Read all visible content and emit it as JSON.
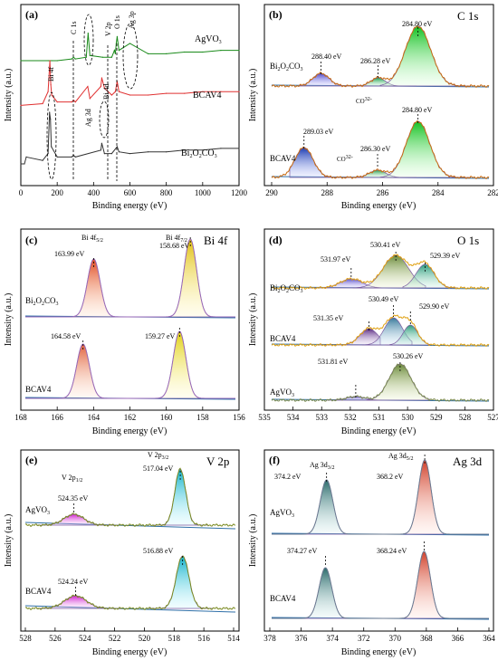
{
  "chart_data": [
    {
      "type": "line",
      "panel": "(a)",
      "xlabel": "Binding energy (eV)",
      "ylabel": "Intensity (a.u.)",
      "xlim": [
        0,
        1200
      ],
      "xticks": [
        "0",
        "200",
        "400",
        "600",
        "800",
        "1000",
        "1200"
      ],
      "series": [
        {
          "name": "AgVO3",
          "color": "#1a8a1a",
          "x": [
            0,
            150,
            160,
            170,
            200,
            280,
            290,
            300,
            360,
            370,
            380,
            450,
            500,
            515,
            520,
            525,
            530,
            540,
            600,
            700,
            800,
            900,
            1000,
            1100,
            1200
          ],
          "y": [
            0.7,
            0.7,
            0.7,
            0.7,
            0.7,
            0.71,
            0.72,
            0.71,
            0.72,
            0.86,
            0.73,
            0.72,
            0.72,
            0.76,
            0.74,
            0.8,
            0.84,
            0.76,
            0.8,
            0.74,
            0.74,
            0.75,
            0.75,
            0.76,
            0.76
          ]
        },
        {
          "name": "BCAV4",
          "color": "#e03030",
          "x": [
            0,
            120,
            150,
            160,
            165,
            170,
            200,
            280,
            290,
            300,
            368,
            380,
            440,
            445,
            460,
            500,
            520,
            530,
            540,
            600,
            700,
            800,
            900,
            1000,
            1100,
            1200
          ],
          "y": [
            0.44,
            0.45,
            0.52,
            0.7,
            0.56,
            0.5,
            0.46,
            0.46,
            0.47,
            0.46,
            0.55,
            0.48,
            0.55,
            0.6,
            0.54,
            0.5,
            0.52,
            0.58,
            0.52,
            0.5,
            0.5,
            0.51,
            0.51,
            0.52,
            0.52,
            0.52
          ]
        },
        {
          "name": "Bi2O2CO3",
          "color": "#333333",
          "x": [
            0,
            20,
            30,
            120,
            150,
            158,
            163,
            168,
            200,
            280,
            290,
            300,
            440,
            445,
            460,
            500,
            530,
            540,
            600,
            700,
            800,
            900,
            1000,
            1100,
            1200
          ],
          "y": [
            0.1,
            0.1,
            0.14,
            0.12,
            0.16,
            0.4,
            0.36,
            0.2,
            0.14,
            0.14,
            0.15,
            0.14,
            0.18,
            0.22,
            0.16,
            0.16,
            0.2,
            0.17,
            0.16,
            0.17,
            0.17,
            0.18,
            0.18,
            0.19,
            0.19
          ]
        }
      ],
      "labels": [
        "AgVO3",
        "BCAV4",
        "Bi2O2CO3"
      ],
      "annotations": [
        "Bi 4f",
        "C 1s",
        "Ag 3d",
        "Bi 4d",
        "V 2p",
        "O 1s",
        "Ag 3p"
      ]
    },
    {
      "type": "line",
      "panel": "(b)",
      "title": "C 1s",
      "xlabel": "Binding energy (eV)",
      "ylabel": "Intensity (a.u.)",
      "xlim": [
        290.5,
        282
      ],
      "xticks": [
        "290",
        "288",
        "286",
        "284",
        "282"
      ],
      "samples": [
        {
          "name": "Bi2O2CO3",
          "peaks": [
            {
              "center": 284.8,
              "label": "284.80 eV"
            },
            {
              "center": 288.4,
              "label": "288.40 eV"
            },
            {
              "center": 286.28,
              "label": "286.28 eV"
            }
          ],
          "note": "CO3 2-"
        },
        {
          "name": "BCAV4",
          "peaks": [
            {
              "center": 289.03,
              "label": "289.03 eV"
            },
            {
              "center": 286.3,
              "label": "286.30 eV"
            },
            {
              "center": 284.8,
              "label": "284.80 eV"
            }
          ],
          "note": "CO3 2-"
        }
      ]
    },
    {
      "type": "line",
      "panel": "(c)",
      "title": "Bi 4f",
      "xlabel": "Binding energy (eV)",
      "ylabel": "Intensity (a.u.)",
      "xlim": [
        168,
        156
      ],
      "xticks": [
        "168",
        "166",
        "164",
        "162",
        "160",
        "158",
        "156"
      ],
      "samples": [
        {
          "name": "Bi2O2CO3",
          "peaks": [
            {
              "center": 163.99,
              "label": "163.99 eV"
            },
            {
              "center": 158.68,
              "label": "158.68 eV"
            }
          ],
          "peak_names": [
            "Bi 4f5/2",
            "Bi 4f7/2"
          ]
        },
        {
          "name": "BCAV4",
          "peaks": [
            {
              "center": 164.58,
              "label": "164.58 eV"
            },
            {
              "center": 159.27,
              "label": "159.27 eV"
            }
          ]
        }
      ]
    },
    {
      "type": "line",
      "panel": "(d)",
      "title": "O 1s",
      "xlabel": "Binding energy (eV)",
      "ylabel": "Intensity (a.u.)",
      "xlim": [
        535,
        527
      ],
      "xticks": [
        "535",
        "534",
        "533",
        "532",
        "531",
        "530",
        "529",
        "528",
        "527"
      ],
      "samples": [
        {
          "name": "Bi2O2CO3",
          "peaks": [
            {
              "center": 531.97,
              "label": "531.97 eV"
            },
            {
              "center": 530.41,
              "label": "530.41 eV"
            },
            {
              "center": 529.39,
              "label": "529.39 eV"
            }
          ]
        },
        {
          "name": "BCAV4",
          "peaks": [
            {
              "center": 531.35,
              "label": "531.35 eV"
            },
            {
              "center": 530.49,
              "label": "530.49 eV"
            },
            {
              "center": 529.9,
              "label": "529.90 eV"
            }
          ]
        },
        {
          "name": "AgVO3",
          "peaks": [
            {
              "center": 531.81,
              "label": "531.81 eV"
            },
            {
              "center": 530.26,
              "label": "530.26 eV"
            }
          ]
        }
      ]
    },
    {
      "type": "line",
      "panel": "(e)",
      "title": "V 2p",
      "xlabel": "Binding energy (eV)",
      "ylabel": "Intensity (a.u.)",
      "xlim": [
        528,
        513
      ],
      "xticks": [
        "528",
        "526",
        "524",
        "522",
        "520",
        "518",
        "516",
        "514"
      ],
      "samples": [
        {
          "name": "AgVO3",
          "peaks": [
            {
              "center": 524.35,
              "label": "524.35 eV"
            },
            {
              "center": 517.04,
              "label": "517.04 eV"
            }
          ],
          "peak_names": [
            "V 2p1/2",
            "V 2p3/2"
          ]
        },
        {
          "name": "BCAV4",
          "peaks": [
            {
              "center": 524.24,
              "label": "524.24 eV"
            },
            {
              "center": 516.88,
              "label": "516.88 eV"
            }
          ]
        }
      ]
    },
    {
      "type": "line",
      "panel": "(f)",
      "title": "Ag 3d",
      "xlabel": "Binding energy (eV)",
      "ylabel": "Intensity (a.u.)",
      "xlim": [
        378,
        364
      ],
      "xticks": [
        "378",
        "376",
        "374",
        "372",
        "370",
        "368",
        "366",
        "364"
      ],
      "samples": [
        {
          "name": "AgVO3",
          "peaks": [
            {
              "center": 374.2,
              "label": "374.2 eV"
            },
            {
              "center": 368.2,
              "label": "368.2 eV"
            }
          ],
          "peak_names": [
            "Ag 3d3/2",
            "Ag 3d5/2"
          ]
        },
        {
          "name": "BCAV4",
          "peaks": [
            {
              "center": 374.27,
              "label": "374.27 eV"
            },
            {
              "center": 368.24,
              "label": "368.24 eV"
            }
          ]
        }
      ]
    }
  ]
}
